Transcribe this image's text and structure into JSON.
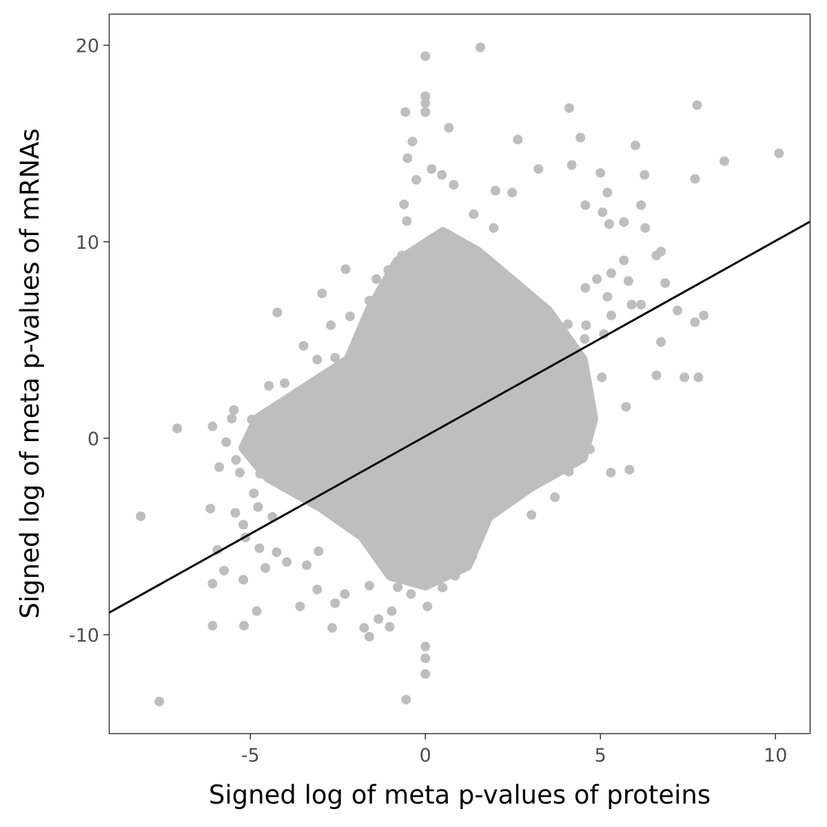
{
  "chart_data": {
    "type": "scatter",
    "title": "",
    "xlabel": "Signed log of meta p-values of proteins",
    "ylabel": "Signed log of meta p-values of mRNAs",
    "xlim": [
      -9.04,
      10.98
    ],
    "ylim": [
      -15.05,
      21.6
    ],
    "x_ticks": [
      -5,
      0,
      5,
      10
    ],
    "x_tick_labels": [
      "-5",
      "0",
      "5",
      "10"
    ],
    "y_ticks": [
      -10,
      0,
      10,
      20
    ],
    "y_tick_labels": [
      "-10",
      "0",
      "10",
      "20"
    ],
    "grid": false,
    "legend": "none",
    "point_color": "#bebebe",
    "line_color": "#000000",
    "regression_line": {
      "slope": 0.994,
      "intercept": 0.1
    },
    "points": [
      [
        1.57,
        19.89
      ],
      [
        0,
        19.44
      ],
      [
        0,
        17.4
      ],
      [
        0,
        17.05
      ],
      [
        0,
        16.6
      ],
      [
        -0.57,
        16.6
      ],
      [
        7.76,
        16.95
      ],
      [
        4.11,
        16.8
      ],
      [
        10.1,
        14.5
      ],
      [
        8.54,
        14.1
      ],
      [
        7.7,
        13.2
      ],
      [
        6.0,
        14.9
      ],
      [
        4.43,
        15.3
      ],
      [
        2.64,
        15.2
      ],
      [
        0.67,
        15.8
      ],
      [
        -0.37,
        15.1
      ],
      [
        6.26,
        13.4
      ],
      [
        5.0,
        13.5
      ],
      [
        7.95,
        6.25
      ],
      [
        7.7,
        5.9
      ],
      [
        7.2,
        6.5
      ],
      [
        6.85,
        7.9
      ],
      [
        6.73,
        9.5
      ],
      [
        6.6,
        9.3
      ],
      [
        7.8,
        3.1
      ],
      [
        7.4,
        3.1
      ],
      [
        6.6,
        3.2
      ],
      [
        6.73,
        4.9
      ],
      [
        5.83,
        -1.6
      ],
      [
        5.3,
        -1.75
      ],
      [
        5.73,
        1.6
      ],
      [
        -2.95,
        7.37
      ],
      [
        -4.23,
        6.4
      ],
      [
        -2.28,
        8.6
      ],
      [
        -7.09,
        0.5
      ],
      [
        -8.13,
        -3.97
      ],
      [
        -7.6,
        -13.4
      ],
      [
        -0.55,
        -13.3
      ],
      [
        0,
        -10.6
      ],
      [
        0,
        -11.2
      ],
      [
        0,
        -12.0
      ],
      [
        -6.08,
        0.6
      ],
      [
        -6.14,
        -3.58
      ],
      [
        -6.08,
        -7.4
      ],
      [
        -6.08,
        -9.54
      ],
      [
        -5.18,
        -9.54
      ],
      [
        -4.82,
        -8.8
      ],
      [
        -5.75,
        -6.74
      ],
      [
        -5.94,
        -5.68
      ],
      [
        -5.2,
        -7.2
      ],
      [
        -3.58,
        -8.56
      ],
      [
        -2.66,
        -9.65
      ],
      [
        -1.75,
        -9.65
      ],
      [
        -1.6,
        -10.1
      ],
      [
        -1.02,
        -9.6
      ],
      [
        -1.34,
        -9.2
      ],
      [
        -0.96,
        -8.8
      ],
      [
        0.06,
        -8.56
      ],
      [
        3.03,
        -3.9
      ],
      [
        3.7,
        -3.0
      ],
      [
        4.1,
        -1.7
      ],
      [
        4.63,
        2.1
      ],
      [
        5.04,
        3.1
      ],
      [
        4.74,
        1.16
      ],
      [
        4.45,
        -0.63
      ],
      [
        5.31,
        6.25
      ],
      [
        4.59,
        5.75
      ],
      [
        5.31,
        8.4
      ],
      [
        5.8,
        8.0
      ],
      [
        5.67,
        9.05
      ],
      [
        6.16,
        11.86
      ],
      [
        6.28,
        10.7
      ],
      [
        5.67,
        11.0
      ],
      [
        5.25,
        10.9
      ],
      [
        5.06,
        11.5
      ],
      [
        5.2,
        12.5
      ],
      [
        4.57,
        11.86
      ],
      [
        4.18,
        13.9
      ],
      [
        3.23,
        13.7
      ],
      [
        2.0,
        12.6
      ],
      [
        2.48,
        12.5
      ],
      [
        5.89,
        6.8
      ],
      [
        6.16,
        6.8
      ],
      [
        4.57,
        7.65
      ],
      [
        4.9,
        8.1
      ],
      [
        5.2,
        7.2
      ],
      [
        5.1,
        5.3
      ],
      [
        4.55,
        5.05
      ],
      [
        4.07,
        5.8
      ],
      [
        3.37,
        1.96
      ],
      [
        3.4,
        4.1
      ],
      [
        4.0,
        2.07
      ],
      [
        3.82,
        0.8
      ],
      [
        4.25,
        0.1
      ],
      [
        4.7,
        -0.56
      ],
      [
        3.54,
        -0.6
      ],
      [
        3.58,
        -1.4
      ],
      [
        3.15,
        -1.65
      ],
      [
        2.26,
        -2.25
      ],
      [
        2.5,
        -2.8
      ],
      [
        2.03,
        -3.65
      ],
      [
        1.34,
        -6.0
      ],
      [
        0.85,
        -7.0
      ],
      [
        0.49,
        -7.6
      ],
      [
        -0.41,
        -7.93
      ],
      [
        -0.79,
        -7.58
      ],
      [
        -1.6,
        -7.5
      ],
      [
        -2.3,
        -7.93
      ],
      [
        -2.58,
        -8.4
      ],
      [
        -3.09,
        -7.7
      ],
      [
        -3.05,
        -5.75
      ],
      [
        -3.39,
        -6.46
      ],
      [
        -3.96,
        -6.3
      ],
      [
        -4.25,
        -5.8
      ],
      [
        -4.74,
        -5.6
      ],
      [
        -4.57,
        -6.6
      ],
      [
        -5.14,
        -5.05
      ],
      [
        -5.2,
        -4.4
      ],
      [
        -4.37,
        -4.0
      ],
      [
        -4.78,
        -3.5
      ],
      [
        -5.43,
        -3.8
      ],
      [
        -5.3,
        -1.75
      ],
      [
        -5.53,
        1.0
      ],
      [
        -5.47,
        1.44
      ],
      [
        -4.96,
        0.95
      ],
      [
        -5.69,
        -0.2
      ],
      [
        -5.41,
        -1.1
      ],
      [
        -5.89,
        -1.47
      ],
      [
        -4.72,
        -1.8
      ],
      [
        -4.9,
        -2.8
      ],
      [
        -4.47,
        2.67
      ],
      [
        -4.02,
        2.8
      ],
      [
        -3.48,
        4.7
      ],
      [
        -3.09,
        4.0
      ],
      [
        -2.58,
        4.1
      ],
      [
        -2.7,
        5.75
      ],
      [
        -2.15,
        6.2
      ],
      [
        -1.6,
        7.0
      ],
      [
        -1.4,
        8.1
      ],
      [
        -1.06,
        8.56
      ],
      [
        -0.67,
        9.3
      ],
      [
        -0.61,
        11.9
      ],
      [
        -0.53,
        11.05
      ],
      [
        -0.26,
        13.15
      ],
      [
        -0.51,
        14.25
      ],
      [
        0.47,
        13.4
      ],
      [
        0.81,
        12.9
      ],
      [
        0.18,
        13.7
      ],
      [
        1.38,
        11.4
      ],
      [
        1.95,
        10.7
      ]
    ]
  }
}
